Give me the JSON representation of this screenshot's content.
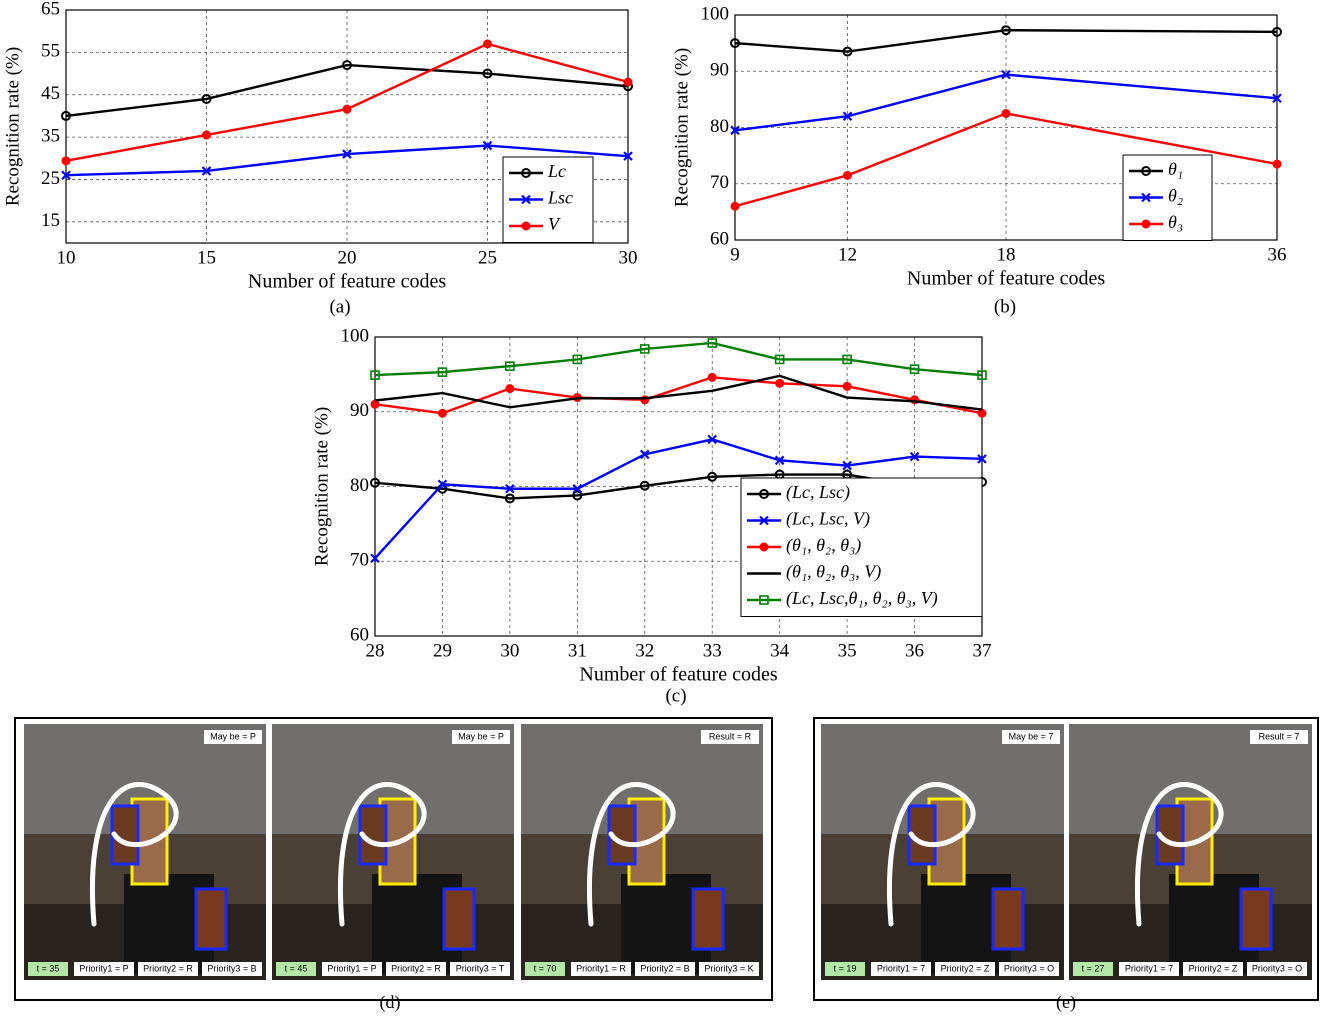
{
  "chart_data": [
    {
      "type": "line",
      "caption": "(a)",
      "xlabel": "Number of feature codes",
      "ylabel": "Recognition rate (%)",
      "x": [
        10,
        15,
        20,
        25,
        30
      ],
      "xlim": [
        10,
        30
      ],
      "xticks": [
        10,
        15,
        20,
        25,
        30
      ],
      "ylim": [
        10,
        65
      ],
      "yticks": [
        15,
        25,
        35,
        45,
        55,
        65
      ],
      "grid": true,
      "legend": "lower right",
      "series": [
        {
          "name": "Lc",
          "color": "#000000",
          "marker": "circle",
          "values": [
            40,
            44,
            52,
            50,
            47
          ]
        },
        {
          "name": "Lsc",
          "color": "#0000ff",
          "marker": "x",
          "values": [
            26,
            27,
            31,
            33,
            30.5
          ]
        },
        {
          "name": "V",
          "color": "#ff0000",
          "marker": "dot",
          "values": [
            29.4,
            35.5,
            41.6,
            57,
            48
          ]
        }
      ]
    },
    {
      "type": "line",
      "caption": "(b)",
      "xlabel": "Number of feature codes",
      "ylabel": "Recognition rate (%)",
      "x": [
        9,
        12,
        18,
        36
      ],
      "xlim": [
        9,
        36
      ],
      "xticks": [
        9,
        12,
        18,
        36
      ],
      "xlog": true,
      "ylim": [
        60,
        100
      ],
      "yticks": [
        60,
        70,
        80,
        90,
        100
      ],
      "grid": true,
      "legend": "lower right",
      "series": [
        {
          "name": "θ₁",
          "color": "#000000",
          "marker": "circle",
          "values": [
            95,
            93.5,
            97.3,
            97
          ]
        },
        {
          "name": "θ₂",
          "color": "#0000ff",
          "marker": "x",
          "values": [
            79.5,
            82,
            89.4,
            85.2
          ]
        },
        {
          "name": "θ₃",
          "color": "#ff0000",
          "marker": "dot",
          "values": [
            66,
            71.5,
            82.5,
            73.5
          ]
        }
      ]
    },
    {
      "type": "line",
      "caption": "(c)",
      "xlabel": "Number of feature codes",
      "ylabel": "Recognition rate (%)",
      "x": [
        28,
        29,
        30,
        31,
        32,
        33,
        34,
        35,
        36,
        37
      ],
      "xlim": [
        28,
        37
      ],
      "xticks": [
        28,
        29,
        30,
        31,
        32,
        33,
        34,
        35,
        36,
        37
      ],
      "ylim": [
        60,
        100
      ],
      "yticks": [
        60,
        70,
        80,
        90,
        100
      ],
      "grid": true,
      "legend": "lower right",
      "series": [
        {
          "name": "(Lc, Lsc)",
          "color": "#000000",
          "marker": "circle",
          "values": [
            80.5,
            79.7,
            78.4,
            78.8,
            80.1,
            81.3,
            81.6,
            81.6,
            80.1,
            80.6
          ]
        },
        {
          "name": "(Lc, Lsc, V)",
          "color": "#0000ff",
          "marker": "x",
          "values": [
            70.4,
            80.3,
            79.7,
            79.7,
            84.3,
            86.3,
            83.5,
            82.8,
            84,
            83.7
          ]
        },
        {
          "name": "(θ₁, θ₂, θ₃)",
          "color": "#ff0000",
          "marker": "dot",
          "values": [
            91,
            89.8,
            93.1,
            91.9,
            91.6,
            94.6,
            93.8,
            93.4,
            91.6,
            89.8
          ]
        },
        {
          "name": "(θ₁, θ₂, θ₃, V)",
          "color": "#000000",
          "marker": "none",
          "values": [
            91.5,
            92.5,
            90.6,
            91.8,
            91.8,
            92.8,
            94.8,
            91.9,
            91.4,
            90.3
          ]
        },
        {
          "name": "(Lc, Lsc,θ₁, θ₂, θ₃, V)",
          "color": "#008000",
          "marker": "square",
          "values": [
            94.9,
            95.3,
            96.1,
            97,
            98.4,
            99.2,
            97,
            97,
            95.7,
            94.9
          ]
        }
      ]
    }
  ],
  "photos": [
    {
      "caption": "(d)",
      "frames": [
        {
          "status": "May be = P",
          "time": "t = 35",
          "priorities": [
            "Priority1 = P",
            "Priority2 = R",
            "Priority3 = B"
          ]
        },
        {
          "status": "May be = P",
          "time": "t = 45",
          "priorities": [
            "Priority1 = P",
            "Priority2 = R",
            "Priority3 = T"
          ]
        },
        {
          "status": "Result = R",
          "time": "t = 70",
          "priorities": [
            "Priority1 = R",
            "Priority2 = B",
            "Priority3 = K"
          ]
        }
      ]
    },
    {
      "caption": "(e)",
      "frames": [
        {
          "status": "May be = 7",
          "time": "t = 19",
          "priorities": [
            "Priority1 = 7",
            "Priority2 = Z",
            "Priority3 = O"
          ]
        },
        {
          "status": "Result = 7",
          "time": "t = 27",
          "priorities": [
            "Priority1 = 7",
            "Priority2 = Z",
            "Priority3 = O"
          ]
        }
      ]
    }
  ]
}
